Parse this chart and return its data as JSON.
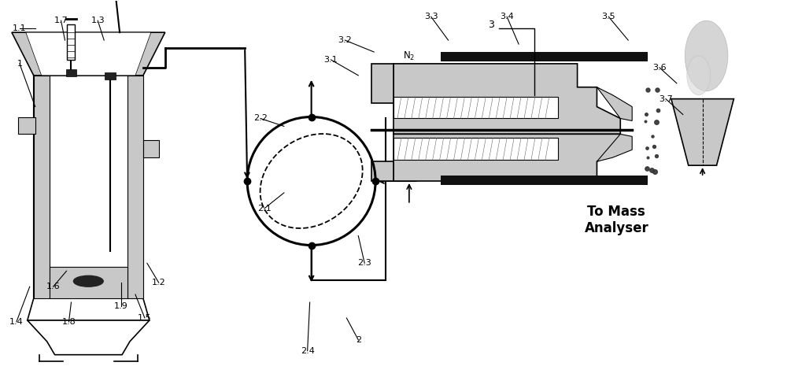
{
  "bg_color": "#ffffff",
  "lc": "#000000",
  "lgc": "#c8c8c8",
  "dgc": "#888888",
  "figsize": [
    10.0,
    4.65
  ],
  "dpi": 100
}
